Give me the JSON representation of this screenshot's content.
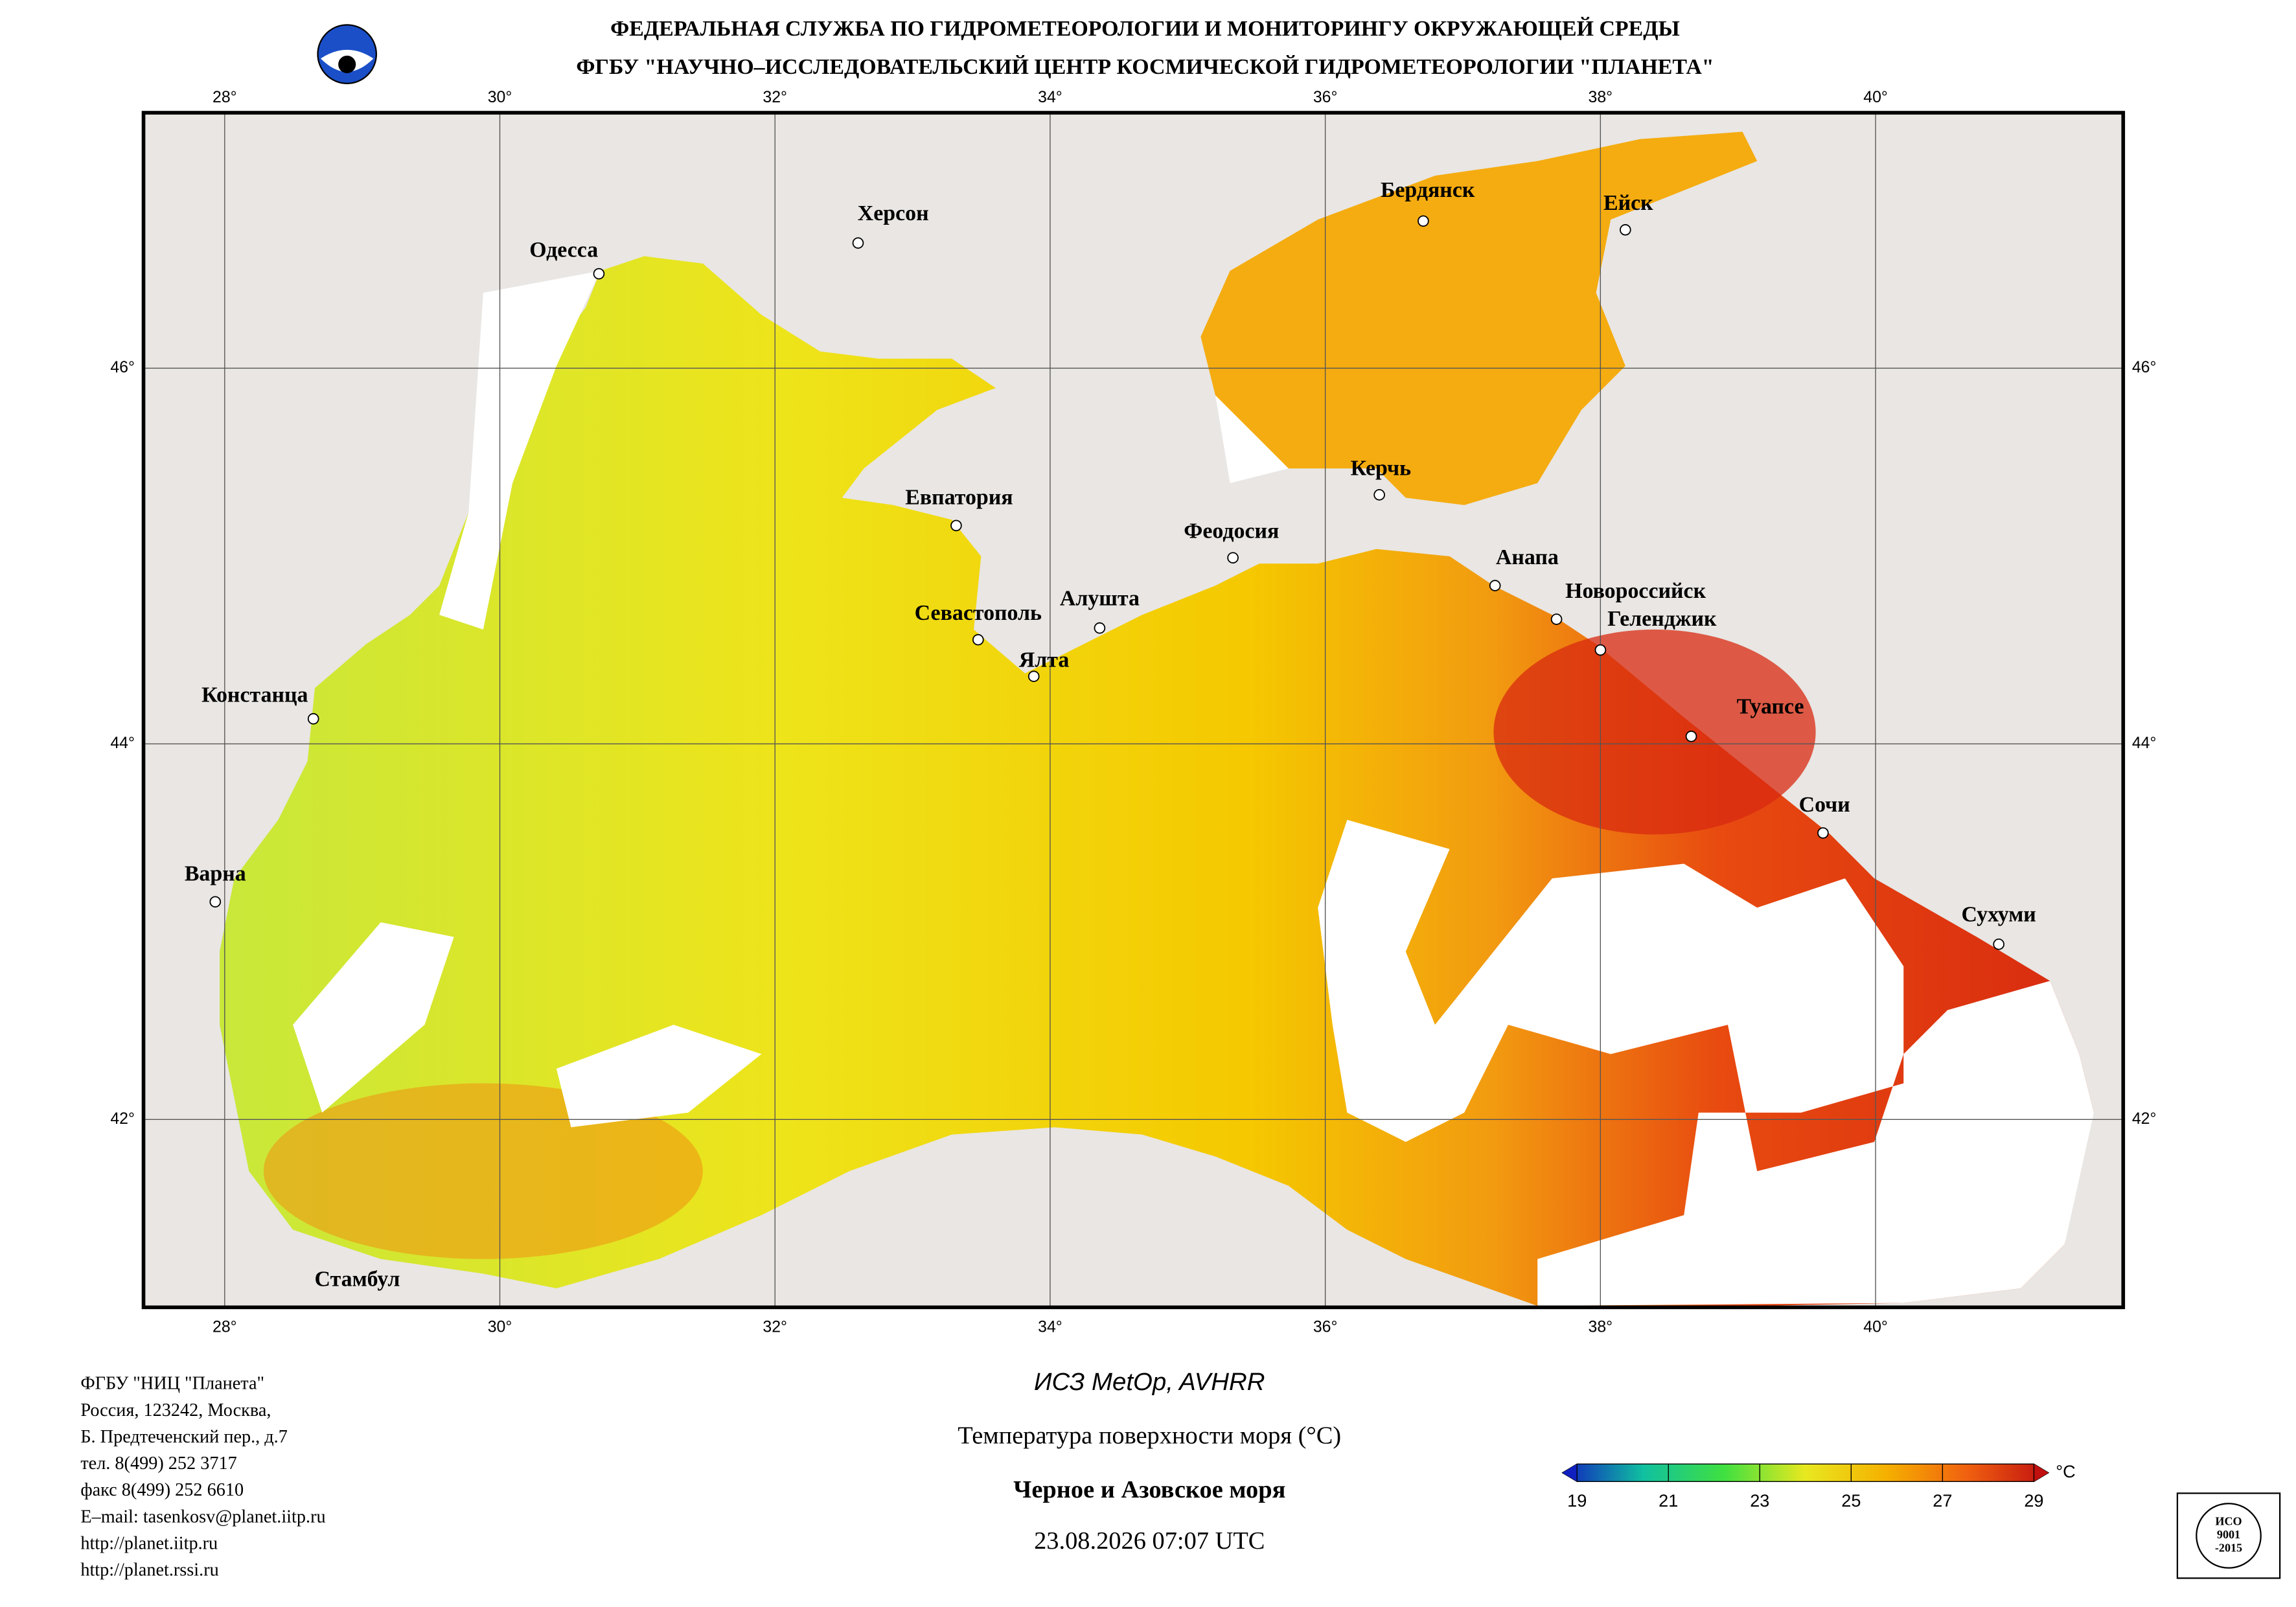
{
  "header": {
    "line1": "ФЕДЕРАЛЬНАЯ СЛУЖБА ПО ГИДРОМЕТЕОРОЛОГИИ И МОНИТОРИНГУ ОКРУЖАЮЩЕЙ СРЕДЫ",
    "line2": "ФГБУ \"НАУЧНО–ИССЛЕДОВАТЕЛЬСКИЙ ЦЕНТР КОСМИЧЕСКОЙ ГИДРОМЕТЕОРОЛОГИИ \"ПЛАНЕТА\""
  },
  "map": {
    "xlim": [
      27.41,
      41.8
    ],
    "ylim": [
      41.0,
      47.36
    ],
    "lon_ticks": [
      {
        "value": 28,
        "label": "28°"
      },
      {
        "value": 30,
        "label": "30°"
      },
      {
        "value": 32,
        "label": "32°"
      },
      {
        "value": 34,
        "label": "34°"
      },
      {
        "value": 36,
        "label": "36°"
      },
      {
        "value": 38,
        "label": "38°"
      },
      {
        "value": 40,
        "label": "40°"
      }
    ],
    "lat_ticks": [
      {
        "value": 42,
        "label": "42°"
      },
      {
        "value": 44,
        "label": "44°"
      },
      {
        "value": 46,
        "label": "46°"
      }
    ],
    "cities": [
      "Одесса",
      "Херсон",
      "Бердянск",
      "Ейск",
      "Керчь",
      "Евпатория",
      "Феодосия",
      "Анапа",
      "Новороссийск",
      "Геленджик",
      "Севастополь",
      "Алушта",
      "Ялта",
      "Констанца",
      "Туапсе",
      "Сочи",
      "Варна",
      "Сухуми",
      "Стамбул"
    ]
  },
  "footer": {
    "org": [
      "ФГБУ \"НИЦ \"Планета\"",
      "Россия, 123242, Москва,",
      "Б. Предтеченский пер., д.7",
      "тел. 8(499) 252 3717",
      "факс 8(499) 252 6610",
      "E–mail: tasenkosv@planet.iitp.ru",
      "http://planet.iitp.ru",
      "http://planet.rssi.ru"
    ],
    "satellite": "ИСЗ MetOp, AVHRR",
    "product": "Температура поверхности моря (°C)",
    "region": "Черное и Азовское моря",
    "datetime": "23.08.2026 07:07 UTC",
    "stamp": [
      "ИСО",
      "9001",
      "-2015"
    ]
  },
  "colorbar": {
    "ticks": [
      19,
      21,
      23,
      25,
      27,
      29
    ],
    "unit": "°C",
    "colors": [
      "#1020c0",
      "#10c0a0",
      "#40e040",
      "#e8e820",
      "#f5b000",
      "#f06010",
      "#c01010"
    ]
  }
}
